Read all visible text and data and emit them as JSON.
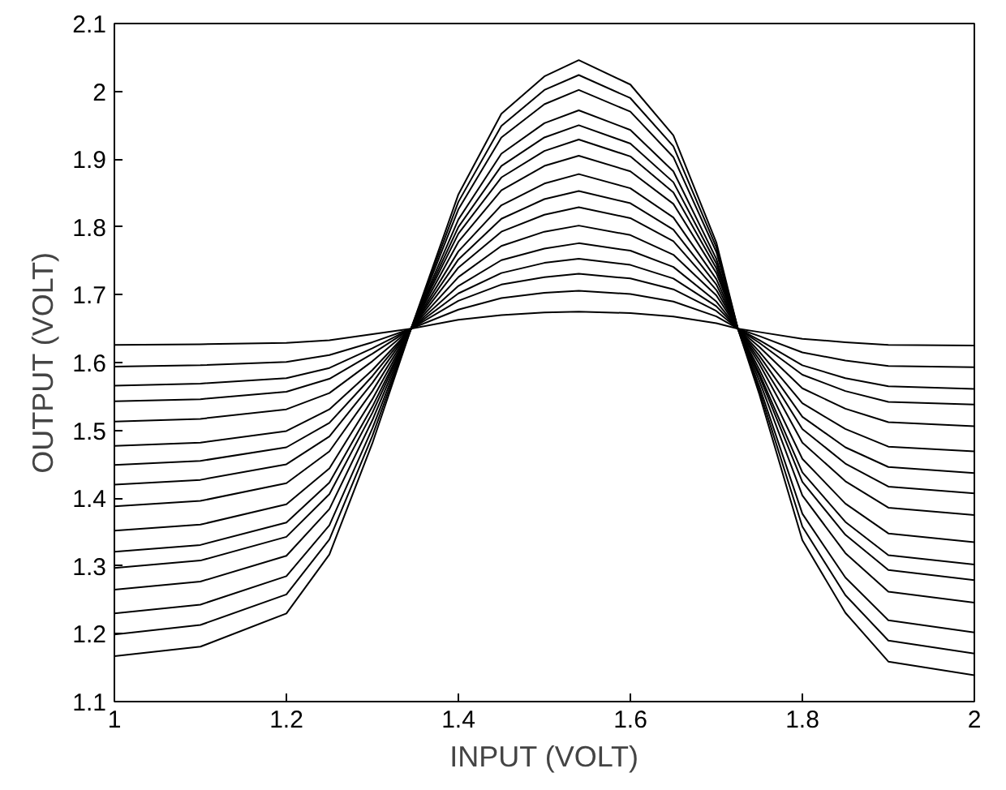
{
  "chart_data": {
    "type": "line",
    "xlabel": "INPUT (VOLT)",
    "ylabel": "OUTPUT (VOLT)",
    "x": [
      1,
      1.1,
      1.2,
      1.25,
      1.3,
      1.345,
      1.4,
      1.45,
      1.5,
      1.54,
      1.6,
      1.65,
      1.7,
      1.725,
      1.75,
      1.8,
      1.85,
      1.9,
      2
    ],
    "series": [
      {
        "color": "#000000",
        "values": [
          1.626,
          1.627,
          1.629,
          1.633,
          1.642,
          1.65,
          1.663,
          1.67,
          1.674,
          1.675,
          1.673,
          1.668,
          1.658,
          1.65,
          1.645,
          1.635,
          1.63,
          1.626,
          1.625
        ]
      },
      {
        "color": "#000000",
        "values": [
          1.594,
          1.596,
          1.601,
          1.611,
          1.63,
          1.65,
          1.678,
          1.695,
          1.703,
          1.706,
          1.701,
          1.69,
          1.668,
          1.65,
          1.639,
          1.615,
          1.603,
          1.595,
          1.593
        ]
      },
      {
        "color": "#000000",
        "values": [
          1.566,
          1.569,
          1.577,
          1.592,
          1.621,
          1.65,
          1.691,
          1.715,
          1.726,
          1.731,
          1.724,
          1.708,
          1.676,
          1.65,
          1.633,
          1.596,
          1.577,
          1.565,
          1.561
        ]
      },
      {
        "color": "#000000",
        "values": [
          1.543,
          1.546,
          1.557,
          1.576,
          1.613,
          1.65,
          1.702,
          1.732,
          1.747,
          1.753,
          1.744,
          1.724,
          1.683,
          1.65,
          1.629,
          1.582,
          1.558,
          1.542,
          1.538
        ]
      },
      {
        "color": "#000000",
        "values": [
          1.513,
          1.517,
          1.531,
          1.555,
          1.602,
          1.65,
          1.713,
          1.751,
          1.768,
          1.776,
          1.765,
          1.741,
          1.69,
          1.65,
          1.623,
          1.562,
          1.532,
          1.512,
          1.506
        ]
      },
      {
        "color": "#000000",
        "values": [
          1.477,
          1.482,
          1.499,
          1.531,
          1.589,
          1.65,
          1.726,
          1.772,
          1.793,
          1.802,
          1.788,
          1.759,
          1.699,
          1.65,
          1.616,
          1.54,
          1.502,
          1.476,
          1.469
        ]
      },
      {
        "color": "#000000",
        "values": [
          1.449,
          1.455,
          1.475,
          1.511,
          1.58,
          1.65,
          1.74,
          1.793,
          1.818,
          1.829,
          1.813,
          1.779,
          1.707,
          1.65,
          1.61,
          1.52,
          1.475,
          1.446,
          1.437
        ]
      },
      {
        "color": "#000000",
        "values": [
          1.42,
          1.427,
          1.45,
          1.491,
          1.57,
          1.65,
          1.752,
          1.812,
          1.841,
          1.853,
          1.835,
          1.796,
          1.715,
          1.65,
          1.604,
          1.502,
          1.451,
          1.417,
          1.407
        ]
      },
      {
        "color": "#000000",
        "values": [
          1.388,
          1.396,
          1.422,
          1.469,
          1.558,
          1.65,
          1.764,
          1.832,
          1.864,
          1.878,
          1.857,
          1.814,
          1.723,
          1.65,
          1.598,
          1.482,
          1.425,
          1.386,
          1.375
        ]
      },
      {
        "color": "#000000",
        "values": [
          1.352,
          1.361,
          1.391,
          1.444,
          1.546,
          1.65,
          1.778,
          1.854,
          1.89,
          1.905,
          1.882,
          1.834,
          1.732,
          1.65,
          1.59,
          1.458,
          1.392,
          1.348,
          1.335
        ]
      },
      {
        "color": "#000000",
        "values": [
          1.321,
          1.331,
          1.364,
          1.423,
          1.535,
          1.65,
          1.79,
          1.873,
          1.912,
          1.929,
          1.904,
          1.851,
          1.739,
          1.65,
          1.584,
          1.438,
          1.365,
          1.316,
          1.302
        ]
      },
      {
        "color": "#000000",
        "values": [
          1.297,
          1.308,
          1.343,
          1.406,
          1.526,
          1.65,
          1.8,
          1.89,
          1.932,
          1.95,
          1.923,
          1.866,
          1.746,
          1.65,
          1.58,
          1.424,
          1.346,
          1.294,
          1.279
        ]
      },
      {
        "color": "#000000",
        "values": [
          1.265,
          1.277,
          1.315,
          1.384,
          1.515,
          1.65,
          1.811,
          1.908,
          1.953,
          1.972,
          1.943,
          1.882,
          1.753,
          1.65,
          1.573,
          1.404,
          1.319,
          1.262,
          1.246
        ]
      },
      {
        "color": "#000000",
        "values": [
          1.23,
          1.243,
          1.285,
          1.36,
          1.503,
          1.65,
          1.826,
          1.932,
          1.981,
          2.002,
          1.97,
          1.903,
          1.763,
          1.65,
          1.565,
          1.377,
          1.283,
          1.22,
          1.202
        ]
      },
      {
        "color": "#000000",
        "values": [
          1.199,
          1.213,
          1.258,
          1.339,
          1.492,
          1.65,
          1.837,
          1.949,
          2.002,
          2.024,
          1.99,
          1.919,
          1.77,
          1.65,
          1.559,
          1.358,
          1.257,
          1.19,
          1.171
        ]
      },
      {
        "color": "#000000",
        "values": [
          1.167,
          1.181,
          1.23,
          1.317,
          1.481,
          1.65,
          1.848,
          1.967,
          2.022,
          2.046,
          2.01,
          1.935,
          1.777,
          1.65,
          1.553,
          1.338,
          1.231,
          1.159,
          1.139
        ]
      }
    ],
    "xlim": [
      1,
      2
    ],
    "ylim": [
      1.1,
      2.1
    ],
    "xticks": [
      1,
      1.2,
      1.4,
      1.6,
      1.8,
      2
    ],
    "yticks": [
      1.1,
      1.2,
      1.3,
      1.4,
      1.5,
      1.6,
      1.7,
      1.8,
      1.9,
      2,
      2.1
    ],
    "grid": false,
    "marker": "none",
    "line_style": "solid"
  }
}
